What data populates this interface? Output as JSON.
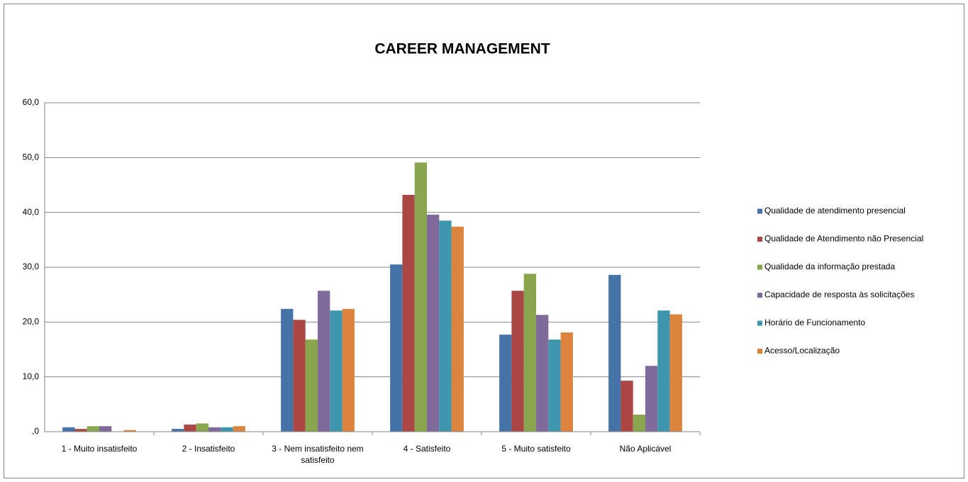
{
  "chart_data": {
    "type": "bar",
    "title": "CAREER MANAGEMENT",
    "categories": [
      "1 - Muito insatisfeito",
      "2 - Insatisfeito",
      "3 - Nem insatisfeito nem satisfeito",
      "4 - Satisfeito",
      "5 - Muito satisfeito",
      "Não Aplicável"
    ],
    "series": [
      {
        "name": "Qualidade de atendimento presencial",
        "color": "#4572a7",
        "values": [
          0.8,
          0.5,
          22.4,
          30.5,
          17.7,
          28.6
        ]
      },
      {
        "name": "Qualidade de Atendimento não Presencial",
        "color": "#aa4643",
        "values": [
          0.5,
          1.3,
          20.4,
          43.2,
          25.7,
          9.3
        ]
      },
      {
        "name": "Qualidade da informação prestada",
        "color": "#89a54e",
        "values": [
          1.0,
          1.5,
          16.8,
          49.1,
          28.8,
          3.1
        ]
      },
      {
        "name": "Capacidade de resposta às solicitações",
        "color": "#80699b",
        "values": [
          1.0,
          0.8,
          25.7,
          39.6,
          21.3,
          12.0
        ]
      },
      {
        "name": "Horário de Funcionamento",
        "color": "#3d96ae",
        "values": [
          0,
          0.8,
          22.1,
          38.5,
          16.8,
          22.1
        ]
      },
      {
        "name": "Acesso/Localização",
        "color": "#db843d",
        "values": [
          0.3,
          1.0,
          22.4,
          37.4,
          18.1,
          21.4
        ]
      }
    ],
    "ylim": [
      0,
      60
    ],
    "yticks": [
      {
        "value": 0,
        "label": ",0"
      },
      {
        "value": 10,
        "label": "10,0"
      },
      {
        "value": 20,
        "label": "20,0"
      },
      {
        "value": 30,
        "label": "30,0"
      },
      {
        "value": 40,
        "label": "40,0"
      },
      {
        "value": 50,
        "label": "50,0"
      },
      {
        "value": 60,
        "label": "60,0"
      }
    ],
    "grid": true,
    "legend": "right"
  }
}
